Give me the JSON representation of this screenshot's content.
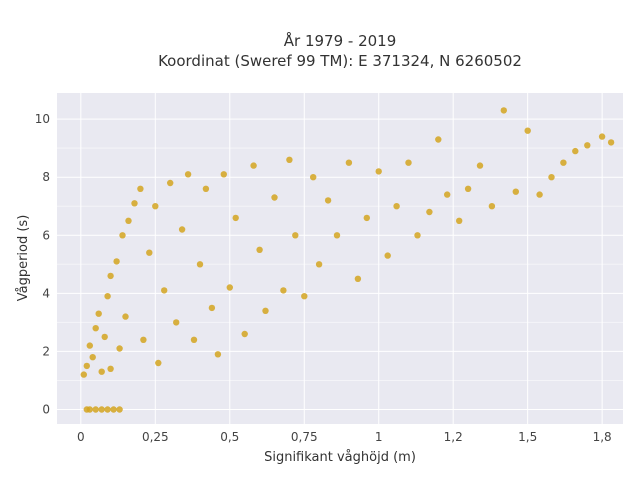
{
  "chart_data": {
    "type": "scatter",
    "title_line1": "År 1979 - 2019",
    "title_line2": "Koordinat (Sweref 99 TM): E 371324, N 6260502",
    "xlabel": "Signifikant våghöjd (m)",
    "ylabel": "Vågperiod (s)",
    "xlim": [
      -0.08,
      1.82
    ],
    "ylim": [
      -0.5,
      10.9
    ],
    "xticks": [
      0,
      0.25,
      0.5,
      0.75,
      1,
      1.25,
      1.5,
      1.75
    ],
    "xtick_labels": [
      "0",
      "0,25",
      "0,5",
      "0,75",
      "1",
      "1,2",
      "1,5",
      "1,8"
    ],
    "yticks": [
      0,
      2,
      4,
      6,
      8,
      10
    ],
    "ytick_labels": [
      "0",
      "2",
      "4",
      "6",
      "8",
      "10"
    ],
    "grid": true,
    "marker_color": "#d4a520",
    "plot_background": "#e9e9f1",
    "points": [
      [
        0.02,
        0
      ],
      [
        0.03,
        0
      ],
      [
        0.05,
        0
      ],
      [
        0.07,
        0
      ],
      [
        0.09,
        0
      ],
      [
        0.11,
        0
      ],
      [
        0.13,
        0
      ],
      [
        0.01,
        1.2
      ],
      [
        0.02,
        1.5
      ],
      [
        0.03,
        2.2
      ],
      [
        0.04,
        1.8
      ],
      [
        0.05,
        2.8
      ],
      [
        0.06,
        3.3
      ],
      [
        0.07,
        1.3
      ],
      [
        0.08,
        2.5
      ],
      [
        0.09,
        3.9
      ],
      [
        0.1,
        1.4
      ],
      [
        0.1,
        4.6
      ],
      [
        0.12,
        5.1
      ],
      [
        0.13,
        2.1
      ],
      [
        0.14,
        6.0
      ],
      [
        0.15,
        3.2
      ],
      [
        0.16,
        6.5
      ],
      [
        0.18,
        7.1
      ],
      [
        0.2,
        7.6
      ],
      [
        0.21,
        2.4
      ],
      [
        0.23,
        5.4
      ],
      [
        0.25,
        7.0
      ],
      [
        0.26,
        1.6
      ],
      [
        0.28,
        4.1
      ],
      [
        0.3,
        7.8
      ],
      [
        0.32,
        3.0
      ],
      [
        0.34,
        6.2
      ],
      [
        0.36,
        8.1
      ],
      [
        0.38,
        2.4
      ],
      [
        0.4,
        5.0
      ],
      [
        0.42,
        7.6
      ],
      [
        0.44,
        3.5
      ],
      [
        0.46,
        1.9
      ],
      [
        0.48,
        8.1
      ],
      [
        0.5,
        4.2
      ],
      [
        0.52,
        6.6
      ],
      [
        0.55,
        2.6
      ],
      [
        0.58,
        8.4
      ],
      [
        0.6,
        5.5
      ],
      [
        0.62,
        3.4
      ],
      [
        0.65,
        7.3
      ],
      [
        0.68,
        4.1
      ],
      [
        0.7,
        8.6
      ],
      [
        0.72,
        6.0
      ],
      [
        0.75,
        3.9
      ],
      [
        0.78,
        8.0
      ],
      [
        0.8,
        5.0
      ],
      [
        0.83,
        7.2
      ],
      [
        0.86,
        6.0
      ],
      [
        0.9,
        8.5
      ],
      [
        0.93,
        4.5
      ],
      [
        0.96,
        6.6
      ],
      [
        1.0,
        8.2
      ],
      [
        1.03,
        5.3
      ],
      [
        1.06,
        7.0
      ],
      [
        1.1,
        8.5
      ],
      [
        1.13,
        6.0
      ],
      [
        1.17,
        6.8
      ],
      [
        1.2,
        9.3
      ],
      [
        1.23,
        7.4
      ],
      [
        1.27,
        6.5
      ],
      [
        1.3,
        7.6
      ],
      [
        1.34,
        8.4
      ],
      [
        1.38,
        7.0
      ],
      [
        1.42,
        10.3
      ],
      [
        1.46,
        7.5
      ],
      [
        1.5,
        9.6
      ],
      [
        1.54,
        7.4
      ],
      [
        1.58,
        8.0
      ],
      [
        1.62,
        8.5
      ],
      [
        1.66,
        8.9
      ],
      [
        1.7,
        9.1
      ],
      [
        1.75,
        9.4
      ],
      [
        1.78,
        9.2
      ]
    ]
  }
}
